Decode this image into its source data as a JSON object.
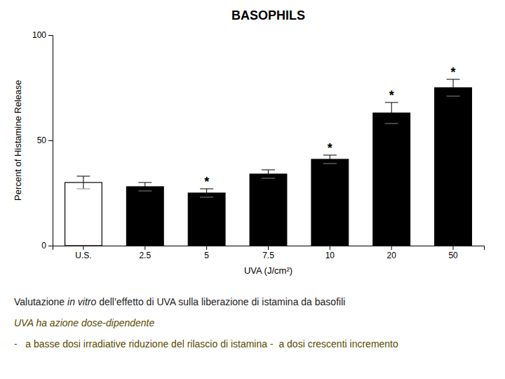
{
  "chart_data": {
    "type": "bar",
    "title": "BASOPHILS",
    "xlabel": "UVA (J/cm²)",
    "ylabel": "Percent of Histamine Release",
    "categories": [
      "U.S.",
      "2.5",
      "5",
      "7.5",
      "10",
      "20",
      "50"
    ],
    "values": [
      30,
      28,
      25,
      34,
      41,
      63,
      75
    ],
    "errors": [
      3,
      2,
      2,
      2,
      2,
      5,
      4
    ],
    "colors": [
      "white",
      "black",
      "black",
      "black",
      "black",
      "black",
      "black"
    ],
    "annotations": [
      null,
      null,
      "*",
      null,
      "*",
      "*",
      "*"
    ],
    "ylim": [
      0,
      100
    ],
    "yticks": [
      0,
      50,
      100
    ],
    "grid": false,
    "notes": [
      [
        "Valutazione ",
        "in vitro",
        " dell’effetto di UVA sulla liberazione di istamina da basofili"
      ],
      [
        "UVA ha azione dose-dipendente"
      ],
      [
        "-   a basse dosi irradiative riduzione del rilascio di istamina -  a dosi crescenti incremento"
      ]
    ]
  }
}
